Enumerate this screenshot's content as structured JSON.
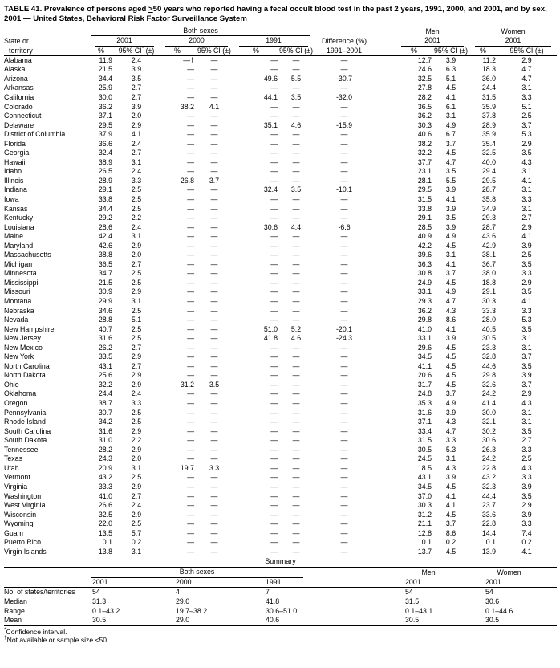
{
  "title": {
    "part1": "TABLE 41. Prevalence of persons aged ",
    "geq": ">",
    "part2": "50 years who reported having a fecal occult blood test in the past 2 years, 1991, 2000, and 2001, and by sex, 2001 — United States, Behavioral Risk Factor Surveillance System"
  },
  "header": {
    "state_line1": "State or",
    "state_line2": "territory",
    "group_both": "Both sexes",
    "group_men": "Men",
    "group_women": "Women",
    "y2001": "2001",
    "y2000": "2000",
    "y1991": "1991",
    "pct": "%",
    "ci_pre": "95% CI",
    "ci_star": "*",
    "ci_paren": " (±)",
    "ci": "95% CI (±)",
    "diff_line1": "Difference (%)",
    "diff_line2": "1991–2001"
  },
  "rows": [
    {
      "state": "Alabama",
      "values": [
        "11.9",
        "2.4",
        "—†",
        "—",
        "—",
        "—",
        "—",
        "12.7",
        "3.9",
        "11.2",
        "2.9"
      ]
    },
    {
      "state": "Alaska",
      "values": [
        "21.5",
        "3.9",
        "—",
        "—",
        "—",
        "—",
        "—",
        "24.6",
        "6.3",
        "18.3",
        "4.7"
      ]
    },
    {
      "state": "Arizona",
      "values": [
        "34.4",
        "3.5",
        "—",
        "—",
        "49.6",
        "5.5",
        "-30.7",
        "32.5",
        "5.1",
        "36.0",
        "4.7"
      ]
    },
    {
      "state": "Arkansas",
      "values": [
        "25.9",
        "2.7",
        "—",
        "—",
        "—",
        "—",
        "—",
        "27.8",
        "4.5",
        "24.4",
        "3.1"
      ]
    },
    {
      "state": "California",
      "values": [
        "30.0",
        "2.7",
        "—",
        "—",
        "44.1",
        "3.5",
        "-32.0",
        "28.2",
        "4.1",
        "31.5",
        "3.3"
      ]
    },
    {
      "state": "Colorado",
      "values": [
        "36.2",
        "3.9",
        "38.2",
        "4.1",
        "—",
        "—",
        "—",
        "36.5",
        "6.1",
        "35.9",
        "5.1"
      ]
    },
    {
      "state": "Connecticut",
      "values": [
        "37.1",
        "2.0",
        "—",
        "—",
        "—",
        "—",
        "—",
        "36.2",
        "3.1",
        "37.8",
        "2.5"
      ]
    },
    {
      "state": "Delaware",
      "values": [
        "29.5",
        "2.9",
        "—",
        "—",
        "35.1",
        "4.6",
        "-15.9",
        "30.3",
        "4.9",
        "28.9",
        "3.7"
      ]
    },
    {
      "state": "District of Columbia",
      "values": [
        "37.9",
        "4.1",
        "—",
        "—",
        "—",
        "—",
        "—",
        "40.6",
        "6.7",
        "35.9",
        "5.3"
      ]
    },
    {
      "state": "Florida",
      "values": [
        "36.6",
        "2.4",
        "—",
        "—",
        "—",
        "—",
        "—",
        "38.2",
        "3.7",
        "35.4",
        "2.9"
      ]
    },
    {
      "state": "Georgia",
      "values": [
        "32.4",
        "2.7",
        "—",
        "—",
        "—",
        "—",
        "—",
        "32.2",
        "4.5",
        "32.5",
        "3.5"
      ]
    },
    {
      "state": "Hawaii",
      "values": [
        "38.9",
        "3.1",
        "—",
        "—",
        "—",
        "—",
        "—",
        "37.7",
        "4.7",
        "40.0",
        "4.3"
      ]
    },
    {
      "state": "Idaho",
      "values": [
        "26.5",
        "2.4",
        "—",
        "—",
        "—",
        "—",
        "—",
        "23.1",
        "3.5",
        "29.4",
        "3.1"
      ]
    },
    {
      "state": "Illinois",
      "values": [
        "28.9",
        "3.3",
        "26.8",
        "3.7",
        "—",
        "—",
        "—",
        "28.1",
        "5.5",
        "29.5",
        "4.1"
      ]
    },
    {
      "state": "Indiana",
      "values": [
        "29.1",
        "2.5",
        "—",
        "—",
        "32.4",
        "3.5",
        "-10.1",
        "29.5",
        "3.9",
        "28.7",
        "3.1"
      ]
    },
    {
      "state": "Iowa",
      "values": [
        "33.8",
        "2.5",
        "—",
        "—",
        "—",
        "—",
        "—",
        "31.5",
        "4.1",
        "35.8",
        "3.3"
      ]
    },
    {
      "state": "Kansas",
      "values": [
        "34.4",
        "2.5",
        "—",
        "—",
        "—",
        "—",
        "—",
        "33.8",
        "3.9",
        "34.9",
        "3.1"
      ]
    },
    {
      "state": "Kentucky",
      "values": [
        "29.2",
        "2.2",
        "—",
        "—",
        "—",
        "—",
        "—",
        "29.1",
        "3.5",
        "29.3",
        "2.7"
      ]
    },
    {
      "state": "Louisiana",
      "values": [
        "28.6",
        "2.4",
        "—",
        "—",
        "30.6",
        "4.4",
        "-6.6",
        "28.5",
        "3.9",
        "28.7",
        "2.9"
      ]
    },
    {
      "state": "Maine",
      "values": [
        "42.4",
        "3.1",
        "—",
        "—",
        "—",
        "—",
        "—",
        "40.9",
        "4.9",
        "43.6",
        "4.1"
      ]
    },
    {
      "state": "Maryland",
      "values": [
        "42.6",
        "2.9",
        "—",
        "—",
        "—",
        "—",
        "—",
        "42.2",
        "4.5",
        "42.9",
        "3.9"
      ]
    },
    {
      "state": "Massachusetts",
      "values": [
        "38.8",
        "2.0",
        "—",
        "—",
        "—",
        "—",
        "—",
        "39.6",
        "3.1",
        "38.1",
        "2.5"
      ]
    },
    {
      "state": "Michigan",
      "values": [
        "36.5",
        "2.7",
        "—",
        "—",
        "—",
        "—",
        "—",
        "36.3",
        "4.1",
        "36.7",
        "3.5"
      ]
    },
    {
      "state": "Minnesota",
      "values": [
        "34.7",
        "2.5",
        "—",
        "—",
        "—",
        "—",
        "—",
        "30.8",
        "3.7",
        "38.0",
        "3.3"
      ]
    },
    {
      "state": "Mississippi",
      "values": [
        "21.5",
        "2.5",
        "—",
        "—",
        "—",
        "—",
        "—",
        "24.9",
        "4.5",
        "18.8",
        "2.9"
      ]
    },
    {
      "state": "Missouri",
      "values": [
        "30.9",
        "2.9",
        "—",
        "—",
        "—",
        "—",
        "—",
        "33.1",
        "4.9",
        "29.1",
        "3.5"
      ]
    },
    {
      "state": "Montana",
      "values": [
        "29.9",
        "3.1",
        "—",
        "—",
        "—",
        "—",
        "—",
        "29.3",
        "4.7",
        "30.3",
        "4.1"
      ]
    },
    {
      "state": "Nebraska",
      "values": [
        "34.6",
        "2.5",
        "—",
        "—",
        "—",
        "—",
        "—",
        "36.2",
        "4.3",
        "33.3",
        "3.3"
      ]
    },
    {
      "state": "Nevada",
      "values": [
        "28.8",
        "5.1",
        "—",
        "—",
        "—",
        "—",
        "—",
        "29.8",
        "8.6",
        "28.0",
        "5.3"
      ]
    },
    {
      "state": "New Hampshire",
      "values": [
        "40.7",
        "2.5",
        "—",
        "—",
        "51.0",
        "5.2",
        "-20.1",
        "41.0",
        "4.1",
        "40.5",
        "3.5"
      ]
    },
    {
      "state": "New Jersey",
      "values": [
        "31.6",
        "2.5",
        "—",
        "—",
        "41.8",
        "4.6",
        "-24.3",
        "33.1",
        "3.9",
        "30.5",
        "3.1"
      ]
    },
    {
      "state": "New Mexico",
      "values": [
        "26.2",
        "2.7",
        "—",
        "—",
        "—",
        "—",
        "—",
        "29.6",
        "4.5",
        "23.3",
        "3.1"
      ]
    },
    {
      "state": "New York",
      "values": [
        "33.5",
        "2.9",
        "—",
        "—",
        "—",
        "—",
        "—",
        "34.5",
        "4.5",
        "32.8",
        "3.7"
      ]
    },
    {
      "state": "North Carolina",
      "values": [
        "43.1",
        "2.7",
        "—",
        "—",
        "—",
        "—",
        "—",
        "41.1",
        "4.5",
        "44.6",
        "3.5"
      ]
    },
    {
      "state": "North Dakota",
      "values": [
        "25.6",
        "2.9",
        "—",
        "—",
        "—",
        "—",
        "—",
        "20.6",
        "4.5",
        "29.8",
        "3.9"
      ]
    },
    {
      "state": "Ohio",
      "values": [
        "32.2",
        "2.9",
        "31.2",
        "3.5",
        "—",
        "—",
        "—",
        "31.7",
        "4.5",
        "32.6",
        "3.7"
      ]
    },
    {
      "state": "Oklahoma",
      "values": [
        "24.4",
        "2.4",
        "—",
        "—",
        "—",
        "—",
        "—",
        "24.8",
        "3.7",
        "24.2",
        "2.9"
      ]
    },
    {
      "state": "Oregon",
      "values": [
        "38.7",
        "3.3",
        "—",
        "—",
        "—",
        "—",
        "—",
        "35.3",
        "4.9",
        "41.4",
        "4.3"
      ]
    },
    {
      "state": "Pennsylvania",
      "values": [
        "30.7",
        "2.5",
        "—",
        "—",
        "—",
        "—",
        "—",
        "31.6",
        "3.9",
        "30.0",
        "3.1"
      ]
    },
    {
      "state": "Rhode Island",
      "values": [
        "34.2",
        "2.5",
        "—",
        "—",
        "—",
        "—",
        "—",
        "37.1",
        "4.3",
        "32.1",
        "3.1"
      ]
    },
    {
      "state": "South Carolina",
      "values": [
        "31.6",
        "2.9",
        "—",
        "—",
        "—",
        "—",
        "—",
        "33.4",
        "4.7",
        "30.2",
        "3.5"
      ]
    },
    {
      "state": "South Dakota",
      "values": [
        "31.0",
        "2.2",
        "—",
        "—",
        "—",
        "—",
        "—",
        "31.5",
        "3.3",
        "30.6",
        "2.7"
      ]
    },
    {
      "state": "Tennessee",
      "values": [
        "28.2",
        "2.9",
        "—",
        "—",
        "—",
        "—",
        "—",
        "30.5",
        "5.3",
        "26.3",
        "3.3"
      ]
    },
    {
      "state": "Texas",
      "values": [
        "24.3",
        "2.0",
        "—",
        "—",
        "—",
        "—",
        "—",
        "24.5",
        "3.1",
        "24.2",
        "2.5"
      ]
    },
    {
      "state": "Utah",
      "values": [
        "20.9",
        "3.1",
        "19.7",
        "3.3",
        "—",
        "—",
        "—",
        "18.5",
        "4.3",
        "22.8",
        "4.3"
      ]
    },
    {
      "state": "Vermont",
      "values": [
        "43.2",
        "2.5",
        "—",
        "—",
        "—",
        "—",
        "—",
        "43.1",
        "3.9",
        "43.2",
        "3.3"
      ]
    },
    {
      "state": "Virginia",
      "values": [
        "33.3",
        "2.9",
        "—",
        "—",
        "—",
        "—",
        "—",
        "34.5",
        "4.5",
        "32.3",
        "3.9"
      ]
    },
    {
      "state": "Washington",
      "values": [
        "41.0",
        "2.7",
        "—",
        "—",
        "—",
        "—",
        "—",
        "37.0",
        "4.1",
        "44.4",
        "3.5"
      ]
    },
    {
      "state": "West Virginia",
      "values": [
        "26.6",
        "2.4",
        "—",
        "—",
        "—",
        "—",
        "—",
        "30.3",
        "4.1",
        "23.7",
        "2.9"
      ]
    },
    {
      "state": "Wisconsin",
      "values": [
        "32.5",
        "2.9",
        "—",
        "—",
        "—",
        "—",
        "—",
        "31.2",
        "4.5",
        "33.6",
        "3.9"
      ]
    },
    {
      "state": "Wyoming",
      "values": [
        "22.0",
        "2.5",
        "—",
        "—",
        "—",
        "—",
        "—",
        "21.1",
        "3.7",
        "22.8",
        "3.3"
      ]
    },
    {
      "state": "Guam",
      "values": [
        "13.5",
        "5.7",
        "—",
        "—",
        "—",
        "—",
        "—",
        "12.8",
        "8.6",
        "14.4",
        "7.4"
      ]
    },
    {
      "state": "Puerto Rico",
      "values": [
        "0.1",
        "0.2",
        "—",
        "—",
        "—",
        "—",
        "—",
        "0.1",
        "0.2",
        "0.1",
        "0.2"
      ]
    },
    {
      "state": "Virgin Islands",
      "values": [
        "13.8",
        "3.1",
        "—",
        "—",
        "—",
        "—",
        "—",
        "13.7",
        "4.5",
        "13.9",
        "4.1"
      ]
    }
  ],
  "summary": {
    "title": "Summary",
    "group_both": "Both sexes",
    "group_men": "Men",
    "group_women": "Women",
    "years": [
      "2001",
      "2000",
      "1991",
      "2001",
      "2001"
    ],
    "rows": [
      {
        "label": "No. of states/territories",
        "values": [
          "54",
          "4",
          "7",
          "54",
          "54"
        ]
      },
      {
        "label": "Median",
        "values": [
          "31.3",
          "29.0",
          "41.8",
          "31.5",
          "30.6"
        ]
      },
      {
        "label": "Range",
        "values": [
          "0.1–43.2",
          "19.7–38.2",
          "30.6–51.0",
          "0.1–43.1",
          "0.1–44.6"
        ]
      },
      {
        "label": "Mean",
        "values": [
          "30.5",
          "29.0",
          "40.6",
          "30.5",
          "30.5"
        ]
      }
    ]
  },
  "footnotes": [
    {
      "marker": "*",
      "text": "Confidence interval."
    },
    {
      "marker": "†",
      "text": "Not available or sample size <50."
    }
  ]
}
